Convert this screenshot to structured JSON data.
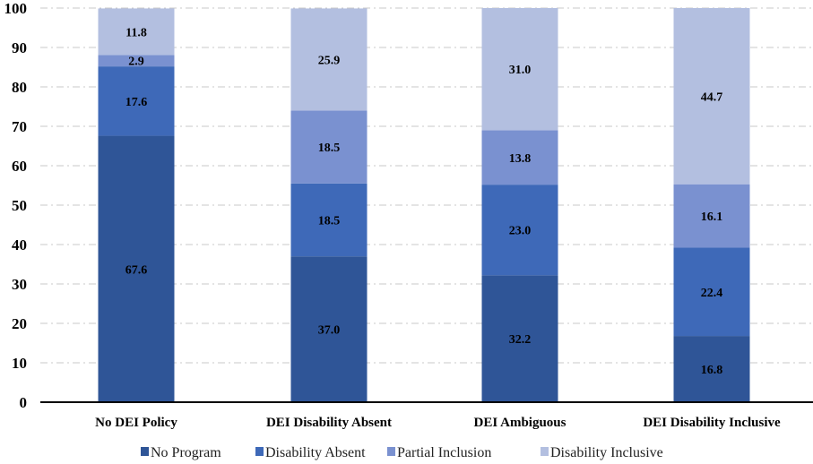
{
  "chart_data": {
    "type": "bar",
    "stacked": true,
    "title": "",
    "xlabel": "",
    "ylabel": "",
    "ylim": [
      0,
      100
    ],
    "yticks": [
      0,
      10,
      20,
      30,
      40,
      50,
      60,
      70,
      80,
      90,
      100
    ],
    "grid": true,
    "legend_position": "bottom",
    "categories": [
      "No DEI Policy",
      "DEI Disability Absent",
      "DEI Ambiguous",
      "DEI Disability Inclusive"
    ],
    "series": [
      {
        "name": "No Program",
        "color": "#2f5597",
        "values": [
          67.6,
          37.0,
          32.2,
          16.8
        ],
        "labels": [
          "67.6",
          "37.0",
          "32.2",
          "16.8"
        ]
      },
      {
        "name": "Disability Absent",
        "color": "#3e69b8",
        "values": [
          17.6,
          18.5,
          23.0,
          22.4
        ],
        "labels": [
          "17.6",
          "18.5",
          "23.0",
          "22.4"
        ]
      },
      {
        "name": "Partial Inclusion",
        "color": "#7a91d0",
        "values": [
          2.9,
          18.5,
          13.8,
          16.1
        ],
        "labels": [
          "2.9",
          "18.5",
          "13.8",
          "16.1"
        ]
      },
      {
        "name": "Disability Inclusive",
        "color": "#b3bfe0",
        "values": [
          11.8,
          25.9,
          31.0,
          44.7
        ],
        "labels": [
          "11.8",
          "25.9",
          "31.0",
          "44.7"
        ]
      }
    ]
  }
}
